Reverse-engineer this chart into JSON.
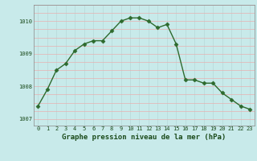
{
  "title": "Graphe pression niveau de la mer (hPa)",
  "hours": [
    0,
    1,
    2,
    3,
    4,
    5,
    6,
    7,
    8,
    9,
    10,
    11,
    12,
    13,
    14,
    15,
    16,
    17,
    18,
    19,
    20,
    21,
    22,
    23
  ],
  "pressure": [
    1007.4,
    1007.9,
    1008.5,
    1008.7,
    1009.1,
    1009.3,
    1009.4,
    1009.4,
    1009.7,
    1010.0,
    1010.1,
    1010.1,
    1010.0,
    1009.8,
    1009.9,
    1009.3,
    1008.2,
    1008.2,
    1008.1,
    1008.1,
    1007.8,
    1007.6,
    1007.4,
    1007.3
  ],
  "line_color": "#2d6a2d",
  "marker": "D",
  "marker_size": 2.5,
  "bg_color": "#c8eaea",
  "grid_color_h": "#e8b0b0",
  "grid_color_v": "#b8d8d8",
  "ylim": [
    1006.8,
    1010.5
  ],
  "yticks": [
    1007,
    1008,
    1009,
    1010
  ],
  "title_color": "#1a4a1a",
  "xlabel_fontsize": 6.5,
  "tick_fontsize": 5.0
}
